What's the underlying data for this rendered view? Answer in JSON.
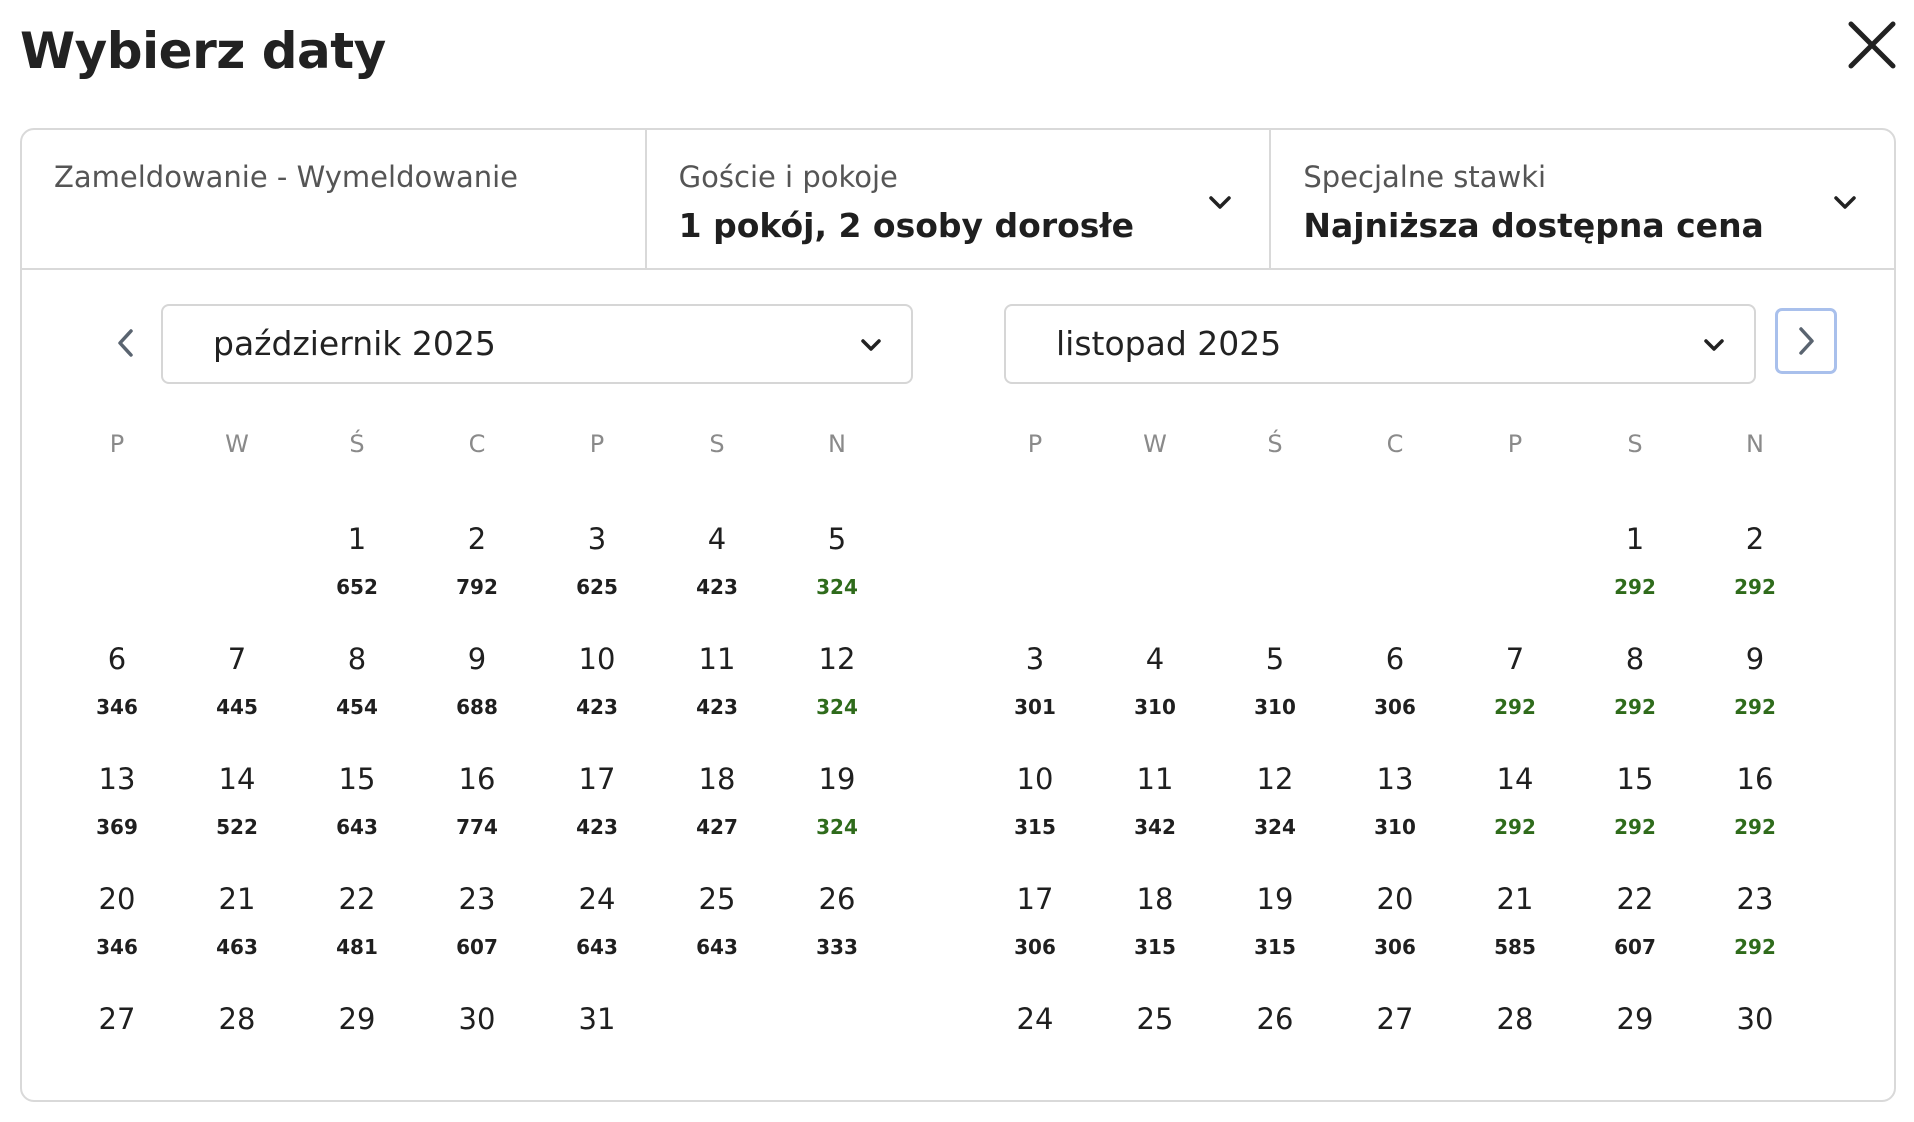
{
  "header": {
    "title": "Wybierz daty",
    "close_icon": "close-icon"
  },
  "fields": [
    {
      "label": "Zameldowanie - Wymeldowanie",
      "value": ""
    },
    {
      "label": "Goście i pokoje",
      "value": "1 pokój, 2 osoby dorosłe"
    },
    {
      "label": "Specjalne stawki",
      "value": "Najniższa dostępna cena"
    }
  ],
  "colors": {
    "low_price": "#2f6b1b",
    "next_focus": "#a9c0ec"
  },
  "weekdays": [
    "P",
    "W",
    "Ś",
    "C",
    "P",
    "S",
    "N"
  ],
  "months": [
    {
      "label": "październik 2025",
      "start_offset": 2,
      "days": [
        {
          "d": "1",
          "p": "652",
          "low": false
        },
        {
          "d": "2",
          "p": "792",
          "low": false
        },
        {
          "d": "3",
          "p": "625",
          "low": false
        },
        {
          "d": "4",
          "p": "423",
          "low": false
        },
        {
          "d": "5",
          "p": "324",
          "low": true
        },
        {
          "d": "6",
          "p": "346",
          "low": false
        },
        {
          "d": "7",
          "p": "445",
          "low": false
        },
        {
          "d": "8",
          "p": "454",
          "low": false
        },
        {
          "d": "9",
          "p": "688",
          "low": false
        },
        {
          "d": "10",
          "p": "423",
          "low": false
        },
        {
          "d": "11",
          "p": "423",
          "low": false
        },
        {
          "d": "12",
          "p": "324",
          "low": true
        },
        {
          "d": "13",
          "p": "369",
          "low": false
        },
        {
          "d": "14",
          "p": "522",
          "low": false
        },
        {
          "d": "15",
          "p": "643",
          "low": false
        },
        {
          "d": "16",
          "p": "774",
          "low": false
        },
        {
          "d": "17",
          "p": "423",
          "low": false
        },
        {
          "d": "18",
          "p": "427",
          "low": false
        },
        {
          "d": "19",
          "p": "324",
          "low": true
        },
        {
          "d": "20",
          "p": "346",
          "low": false
        },
        {
          "d": "21",
          "p": "463",
          "low": false
        },
        {
          "d": "22",
          "p": "481",
          "low": false
        },
        {
          "d": "23",
          "p": "607",
          "low": false
        },
        {
          "d": "24",
          "p": "643",
          "low": false
        },
        {
          "d": "25",
          "p": "643",
          "low": false
        },
        {
          "d": "26",
          "p": "333",
          "low": false
        },
        {
          "d": "27",
          "p": "",
          "low": false
        },
        {
          "d": "28",
          "p": "",
          "low": false
        },
        {
          "d": "29",
          "p": "",
          "low": false
        },
        {
          "d": "30",
          "p": "",
          "low": false
        },
        {
          "d": "31",
          "p": "",
          "low": false
        }
      ]
    },
    {
      "label": "listopad 2025",
      "start_offset": 5,
      "days": [
        {
          "d": "1",
          "p": "292",
          "low": true
        },
        {
          "d": "2",
          "p": "292",
          "low": true
        },
        {
          "d": "3",
          "p": "301",
          "low": false
        },
        {
          "d": "4",
          "p": "310",
          "low": false
        },
        {
          "d": "5",
          "p": "310",
          "low": false
        },
        {
          "d": "6",
          "p": "306",
          "low": false
        },
        {
          "d": "7",
          "p": "292",
          "low": true
        },
        {
          "d": "8",
          "p": "292",
          "low": true
        },
        {
          "d": "9",
          "p": "292",
          "low": true
        },
        {
          "d": "10",
          "p": "315",
          "low": false
        },
        {
          "d": "11",
          "p": "342",
          "low": false
        },
        {
          "d": "12",
          "p": "324",
          "low": false
        },
        {
          "d": "13",
          "p": "310",
          "low": false
        },
        {
          "d": "14",
          "p": "292",
          "low": true
        },
        {
          "d": "15",
          "p": "292",
          "low": true
        },
        {
          "d": "16",
          "p": "292",
          "low": true
        },
        {
          "d": "17",
          "p": "306",
          "low": false
        },
        {
          "d": "18",
          "p": "315",
          "low": false
        },
        {
          "d": "19",
          "p": "315",
          "low": false
        },
        {
          "d": "20",
          "p": "306",
          "low": false
        },
        {
          "d": "21",
          "p": "585",
          "low": false
        },
        {
          "d": "22",
          "p": "607",
          "low": false
        },
        {
          "d": "23",
          "p": "292",
          "low": true
        },
        {
          "d": "24",
          "p": "",
          "low": false
        },
        {
          "d": "25",
          "p": "",
          "low": false
        },
        {
          "d": "26",
          "p": "",
          "low": false
        },
        {
          "d": "27",
          "p": "",
          "low": false
        },
        {
          "d": "28",
          "p": "",
          "low": false
        },
        {
          "d": "29",
          "p": "",
          "low": false
        },
        {
          "d": "30",
          "p": "",
          "low": false
        }
      ]
    }
  ]
}
